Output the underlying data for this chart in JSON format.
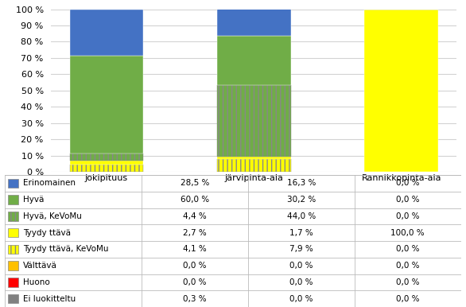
{
  "categories": [
    "Jokipituus",
    "Järvipinta-ala",
    "Rannikkopinta-ala"
  ],
  "series": [
    {
      "label": "Ei luokitteltu",
      "color": "#808080",
      "hatch": null,
      "values": [
        0.3,
        0.0,
        0.0
      ]
    },
    {
      "label": "Huono",
      "color": "#FF0000",
      "hatch": null,
      "values": [
        0.0,
        0.0,
        0.0
      ]
    },
    {
      "label": "Välttävä",
      "color": "#FFC000",
      "hatch": null,
      "values": [
        0.0,
        0.0,
        0.0
      ]
    },
    {
      "label": "Tyydy ttävä, KeVoMu",
      "color": "#FFFF00",
      "hatch": "|||",
      "values": [
        4.1,
        7.9,
        0.0
      ]
    },
    {
      "label": "Tyydy ttävä",
      "color": "#FFFF00",
      "hatch": null,
      "values": [
        2.7,
        1.7,
        100.0
      ]
    },
    {
      "label": "Hyvä, KeVoMu",
      "color": "#70AD47",
      "hatch": "|||",
      "values": [
        4.4,
        44.0,
        0.0
      ]
    },
    {
      "label": "Hyvä",
      "color": "#70AD47",
      "hatch": null,
      "values": [
        60.0,
        30.2,
        0.0
      ]
    },
    {
      "label": "Erinomainen",
      "color": "#4472C4",
      "hatch": null,
      "values": [
        28.5,
        16.3,
        0.0
      ]
    }
  ],
  "legend_order": [
    {
      "label": "Erinomainen",
      "color": "#4472C4",
      "hatch": null
    },
    {
      "label": "Hyvä",
      "color": "#70AD47",
      "hatch": null
    },
    {
      "label": "Hyvä, KeVoMu",
      "color": "#70AD47",
      "hatch": "|||"
    },
    {
      "label": "Tyydy ttävä",
      "color": "#FFFF00",
      "hatch": null
    },
    {
      "label": "Tyydy ttävä, KeVoMu",
      "color": "#FFFF00",
      "hatch": "|||"
    },
    {
      "label": "Välttävä",
      "color": "#FFC000",
      "hatch": null
    },
    {
      "label": "Huono",
      "color": "#FF0000",
      "hatch": null
    },
    {
      "label": "Ei luokitteltu",
      "color": "#808080",
      "hatch": null
    }
  ],
  "table_rows": [
    {
      "label": "Erinomainen",
      "color": "#4472C4",
      "hatch": null,
      "values": [
        "28,5 %",
        "16,3 %",
        "0,0 %"
      ]
    },
    {
      "label": "Hyvä",
      "color": "#70AD47",
      "hatch": null,
      "values": [
        "60,0 %",
        "30,2 %",
        "0,0 %"
      ]
    },
    {
      "label": "Hyvä, KeVoMu",
      "color": "#70AD47",
      "hatch": "|||",
      "values": [
        "4,4 %",
        "44,0 %",
        "0,0 %"
      ]
    },
    {
      "label": "Tyydy ttävä",
      "color": "#FFFF00",
      "hatch": null,
      "values": [
        "2,7 %",
        "1,7 %",
        "100,0 %"
      ]
    },
    {
      "label": "Tyydy ttävä, KeVoMu",
      "color": "#FFFF00",
      "hatch": "|||",
      "values": [
        "4,1 %",
        "7,9 %",
        "0,0 %"
      ]
    },
    {
      "label": "Välttävä",
      "color": "#FFC000",
      "hatch": null,
      "values": [
        "0,0 %",
        "0,0 %",
        "0,0 %"
      ]
    },
    {
      "label": "Huono",
      "color": "#FF0000",
      "hatch": null,
      "values": [
        "0,0 %",
        "0,0 %",
        "0,0 %"
      ]
    },
    {
      "label": "Ei luokitteltu",
      "color": "#808080",
      "hatch": null,
      "values": [
        "0,3 %",
        "0,0 %",
        "0,0 %"
      ]
    }
  ],
  "ylim": [
    0,
    100
  ],
  "yticks": [
    0,
    10,
    20,
    30,
    40,
    50,
    60,
    70,
    80,
    90,
    100
  ],
  "ytick_labels": [
    "0 %",
    "10 %",
    "20 %",
    "30 %",
    "40 %",
    "50 %",
    "60 %",
    "70 %",
    "80 %",
    "90 %",
    "100 %"
  ],
  "bar_width": 0.5,
  "fig_width": 5.86,
  "fig_height": 3.86,
  "dpi": 100,
  "background_color": "#FFFFFF",
  "grid_color": "#D3D3D3",
  "font_size": 8,
  "table_font_size": 7.5
}
